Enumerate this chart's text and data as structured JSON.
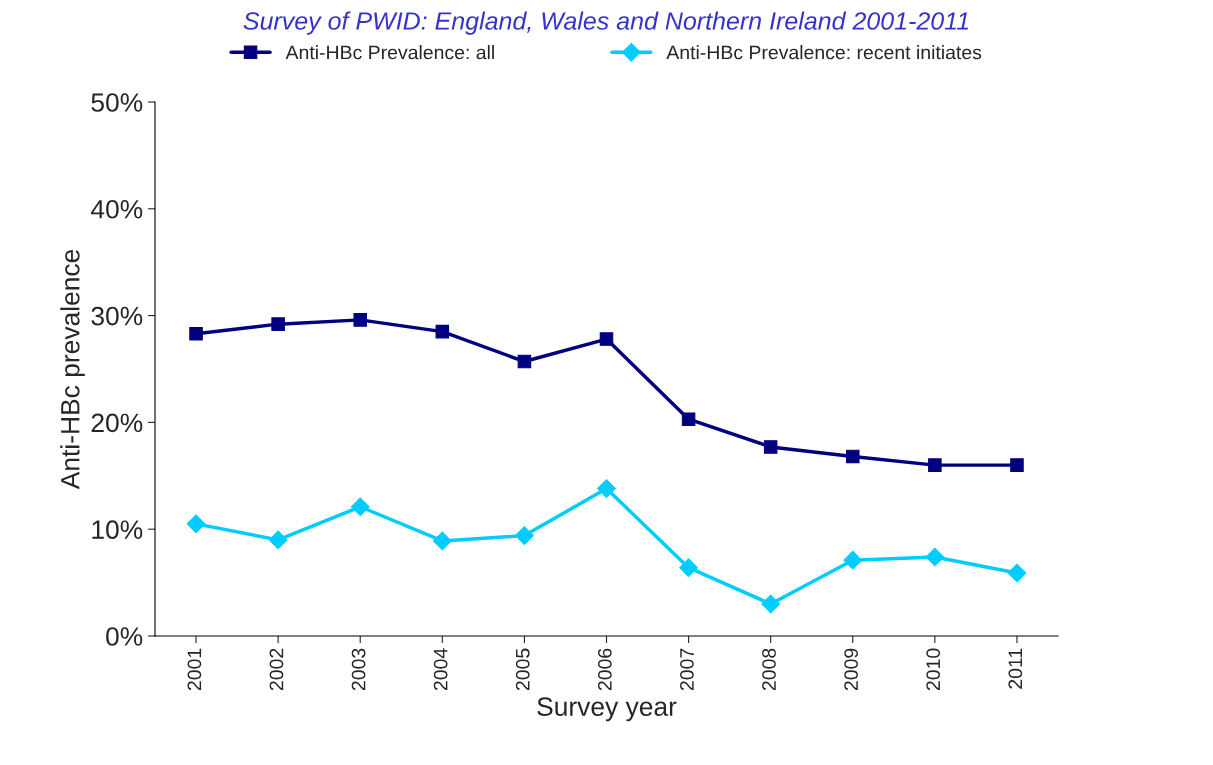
{
  "chart_data": {
    "type": "line",
    "title": "Survey of PWID: England, Wales and Northern Ireland 2001-2011",
    "xlabel": "Survey year",
    "ylabel": "Anti-HBc prevalence",
    "categories": [
      "2001",
      "2002",
      "2003",
      "2004",
      "2005",
      "2006",
      "2007",
      "2008",
      "2009",
      "2010",
      "2011"
    ],
    "series": [
      {
        "name": "Anti-HBc Prevalence: all",
        "color": "#000080",
        "marker": "square",
        "values": [
          28.3,
          29.2,
          29.6,
          28.5,
          25.7,
          27.8,
          20.3,
          17.7,
          16.8,
          16.0,
          16.0
        ]
      },
      {
        "name": "Anti-HBc Prevalence: recent initiates",
        "color": "#00ccff",
        "marker": "diamond",
        "values": [
          10.5,
          9.0,
          12.1,
          8.9,
          9.4,
          13.8,
          6.4,
          3.0,
          7.1,
          7.4,
          5.9
        ]
      }
    ],
    "ylim": [
      0,
      50
    ],
    "yticks": [
      {
        "value": 0,
        "label": "0%"
      },
      {
        "value": 10,
        "label": "10%"
      },
      {
        "value": 20,
        "label": "20%"
      },
      {
        "value": 30,
        "label": "30%"
      },
      {
        "value": 40,
        "label": "40%"
      },
      {
        "value": 50,
        "label": "50%"
      }
    ],
    "grid": false,
    "legend": "top",
    "line_style": "solid"
  }
}
